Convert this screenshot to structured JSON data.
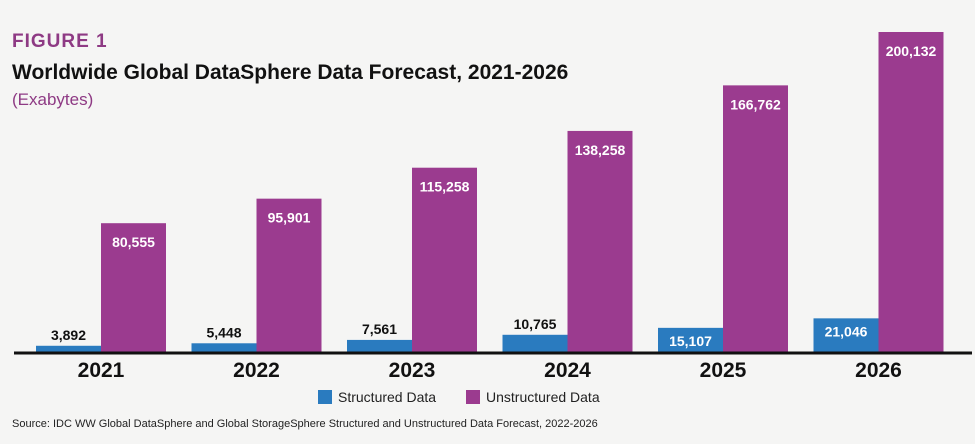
{
  "figure_label": "FIGURE 1",
  "source": "Source: IDC WW Global DataSphere and Global StorageSphere Structured and Unstructured Data Forecast, 2022-2026",
  "chart_data": {
    "type": "bar",
    "title": "Worldwide Global DataSphere Data Forecast, 2021-2026",
    "subtitle": "(Exabytes)",
    "categories": [
      "2021",
      "2022",
      "2023",
      "2024",
      "2025",
      "2026"
    ],
    "series": [
      {
        "name": "Structured Data",
        "color": "#2a7bbf",
        "values": [
          3892,
          5448,
          7561,
          10765,
          15107,
          21046
        ],
        "labels": [
          "3,892",
          "5,448",
          "7,561",
          "10,765",
          "15,107",
          "21,046"
        ]
      },
      {
        "name": "Unstructured Data",
        "color": "#9b3b8f",
        "values": [
          80555,
          95901,
          115258,
          138258,
          166762,
          200132
        ],
        "labels": [
          "80,555",
          "95,901",
          "115,258",
          "138,258",
          "166,762",
          "200,132"
        ]
      }
    ],
    "ylim": [
      0,
      200132
    ],
    "grid": false,
    "legend": "bottom-center"
  }
}
